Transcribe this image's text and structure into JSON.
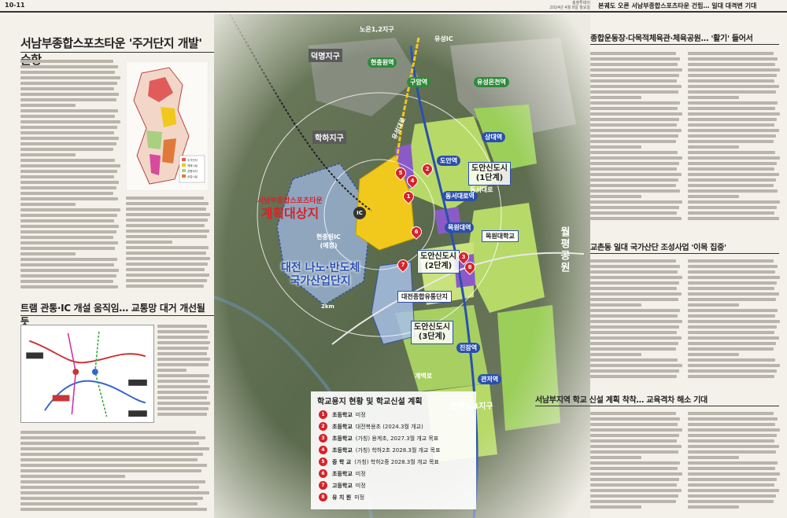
{
  "header": {
    "page_number": "10-11",
    "paper_meta_line1": "충청투데이",
    "paper_meta_line2": "2024년 4월 8일 월요일",
    "title": "본궤도 오른 서남부종합스포츠타운 건립… 일대 대격변 기대"
  },
  "left": {
    "main_headline": "서남부종합스포츠타운 '주거단지 개발' 순항",
    "sub_headline": "트램 관통·IC 개설 움직임… 교통망 대거 개선될 듯",
    "mini_map_legend": [
      "주거단지",
      "체육시설",
      "공원녹지",
      "상업시설"
    ]
  },
  "map": {
    "labels": {
      "deokmyeong": "덕명지구",
      "hakha": "학하지구",
      "hyeonchung_ic": "현충원IC",
      "hyeonchung_ic_sub": "(예정)",
      "target_line1": "서남부종합스포츠타운",
      "target_line2": "계획대상지",
      "nano_line1": "대전 나노·반도체",
      "nano_line2": "국가산업단지",
      "doan_1": "도안신도시",
      "doan_1_sub": "(1단계)",
      "doan_2": "도안신도시",
      "doan_2_sub": "(2단계)",
      "doan_3": "도안신도시",
      "doan_3_sub": "(3단계)",
      "daejeon_complex": "대전종합유통단지",
      "gwanjeo_district": "관저3,4지구",
      "wolpyeong_park": "월평공원",
      "dongseo_road": "동서대로",
      "yuseong_ic": "유성IC",
      "noeun": "노은1,2지구",
      "distance_2km": "2km",
      "yuseong_road": "유성대로",
      "gyebaek_road": "계백로",
      "mokwon_univ": "목원대학교",
      "ic_label": "IC"
    },
    "stations": [
      "현충원역",
      "구암역",
      "유성온천역",
      "상대역",
      "도안역",
      "동서대로역",
      "목원대역",
      "진잠역",
      "관저역"
    ]
  },
  "schools": {
    "title": "학교용지 현황 및 학교신설 계획",
    "rows": [
      {
        "num": "1",
        "type": "초등학교",
        "note": "미정"
      },
      {
        "num": "2",
        "type": "초등학교",
        "note": "대전복용초 (2024.3월 개교)"
      },
      {
        "num": "3",
        "type": "초등학교",
        "note": "(가칭) 용계초, 2027.3월 개교 목표"
      },
      {
        "num": "4",
        "type": "초등학교",
        "note": "(가칭) 학하2초 2028.3월 개교 목표"
      },
      {
        "num": "5",
        "type": "중 학 교",
        "note": "(가칭) 학하2중 2028.3월 개교 목표"
      },
      {
        "num": "6",
        "type": "초등학교",
        "note": "미정"
      },
      {
        "num": "7",
        "type": "고등학교",
        "note": "미정"
      },
      {
        "num": "8",
        "type": "유 치 원",
        "note": "미정"
      }
    ]
  },
  "right": {
    "headline1": "종합운동장·다목적체육관·체육공원… '활기' 들어서",
    "headline2": "교촌동 일대 국가산단 조성사업 '이목 집중'",
    "headline3": "서남부지역 학교 신설 계획 착착… 교육격차 해소 기대"
  },
  "colors": {
    "accent_red": "#d6232a",
    "accent_blue": "#2a4fae",
    "target_yellow": "#f1c81c",
    "residential_green": "#b7d968",
    "purple": "#8a5bc7"
  }
}
